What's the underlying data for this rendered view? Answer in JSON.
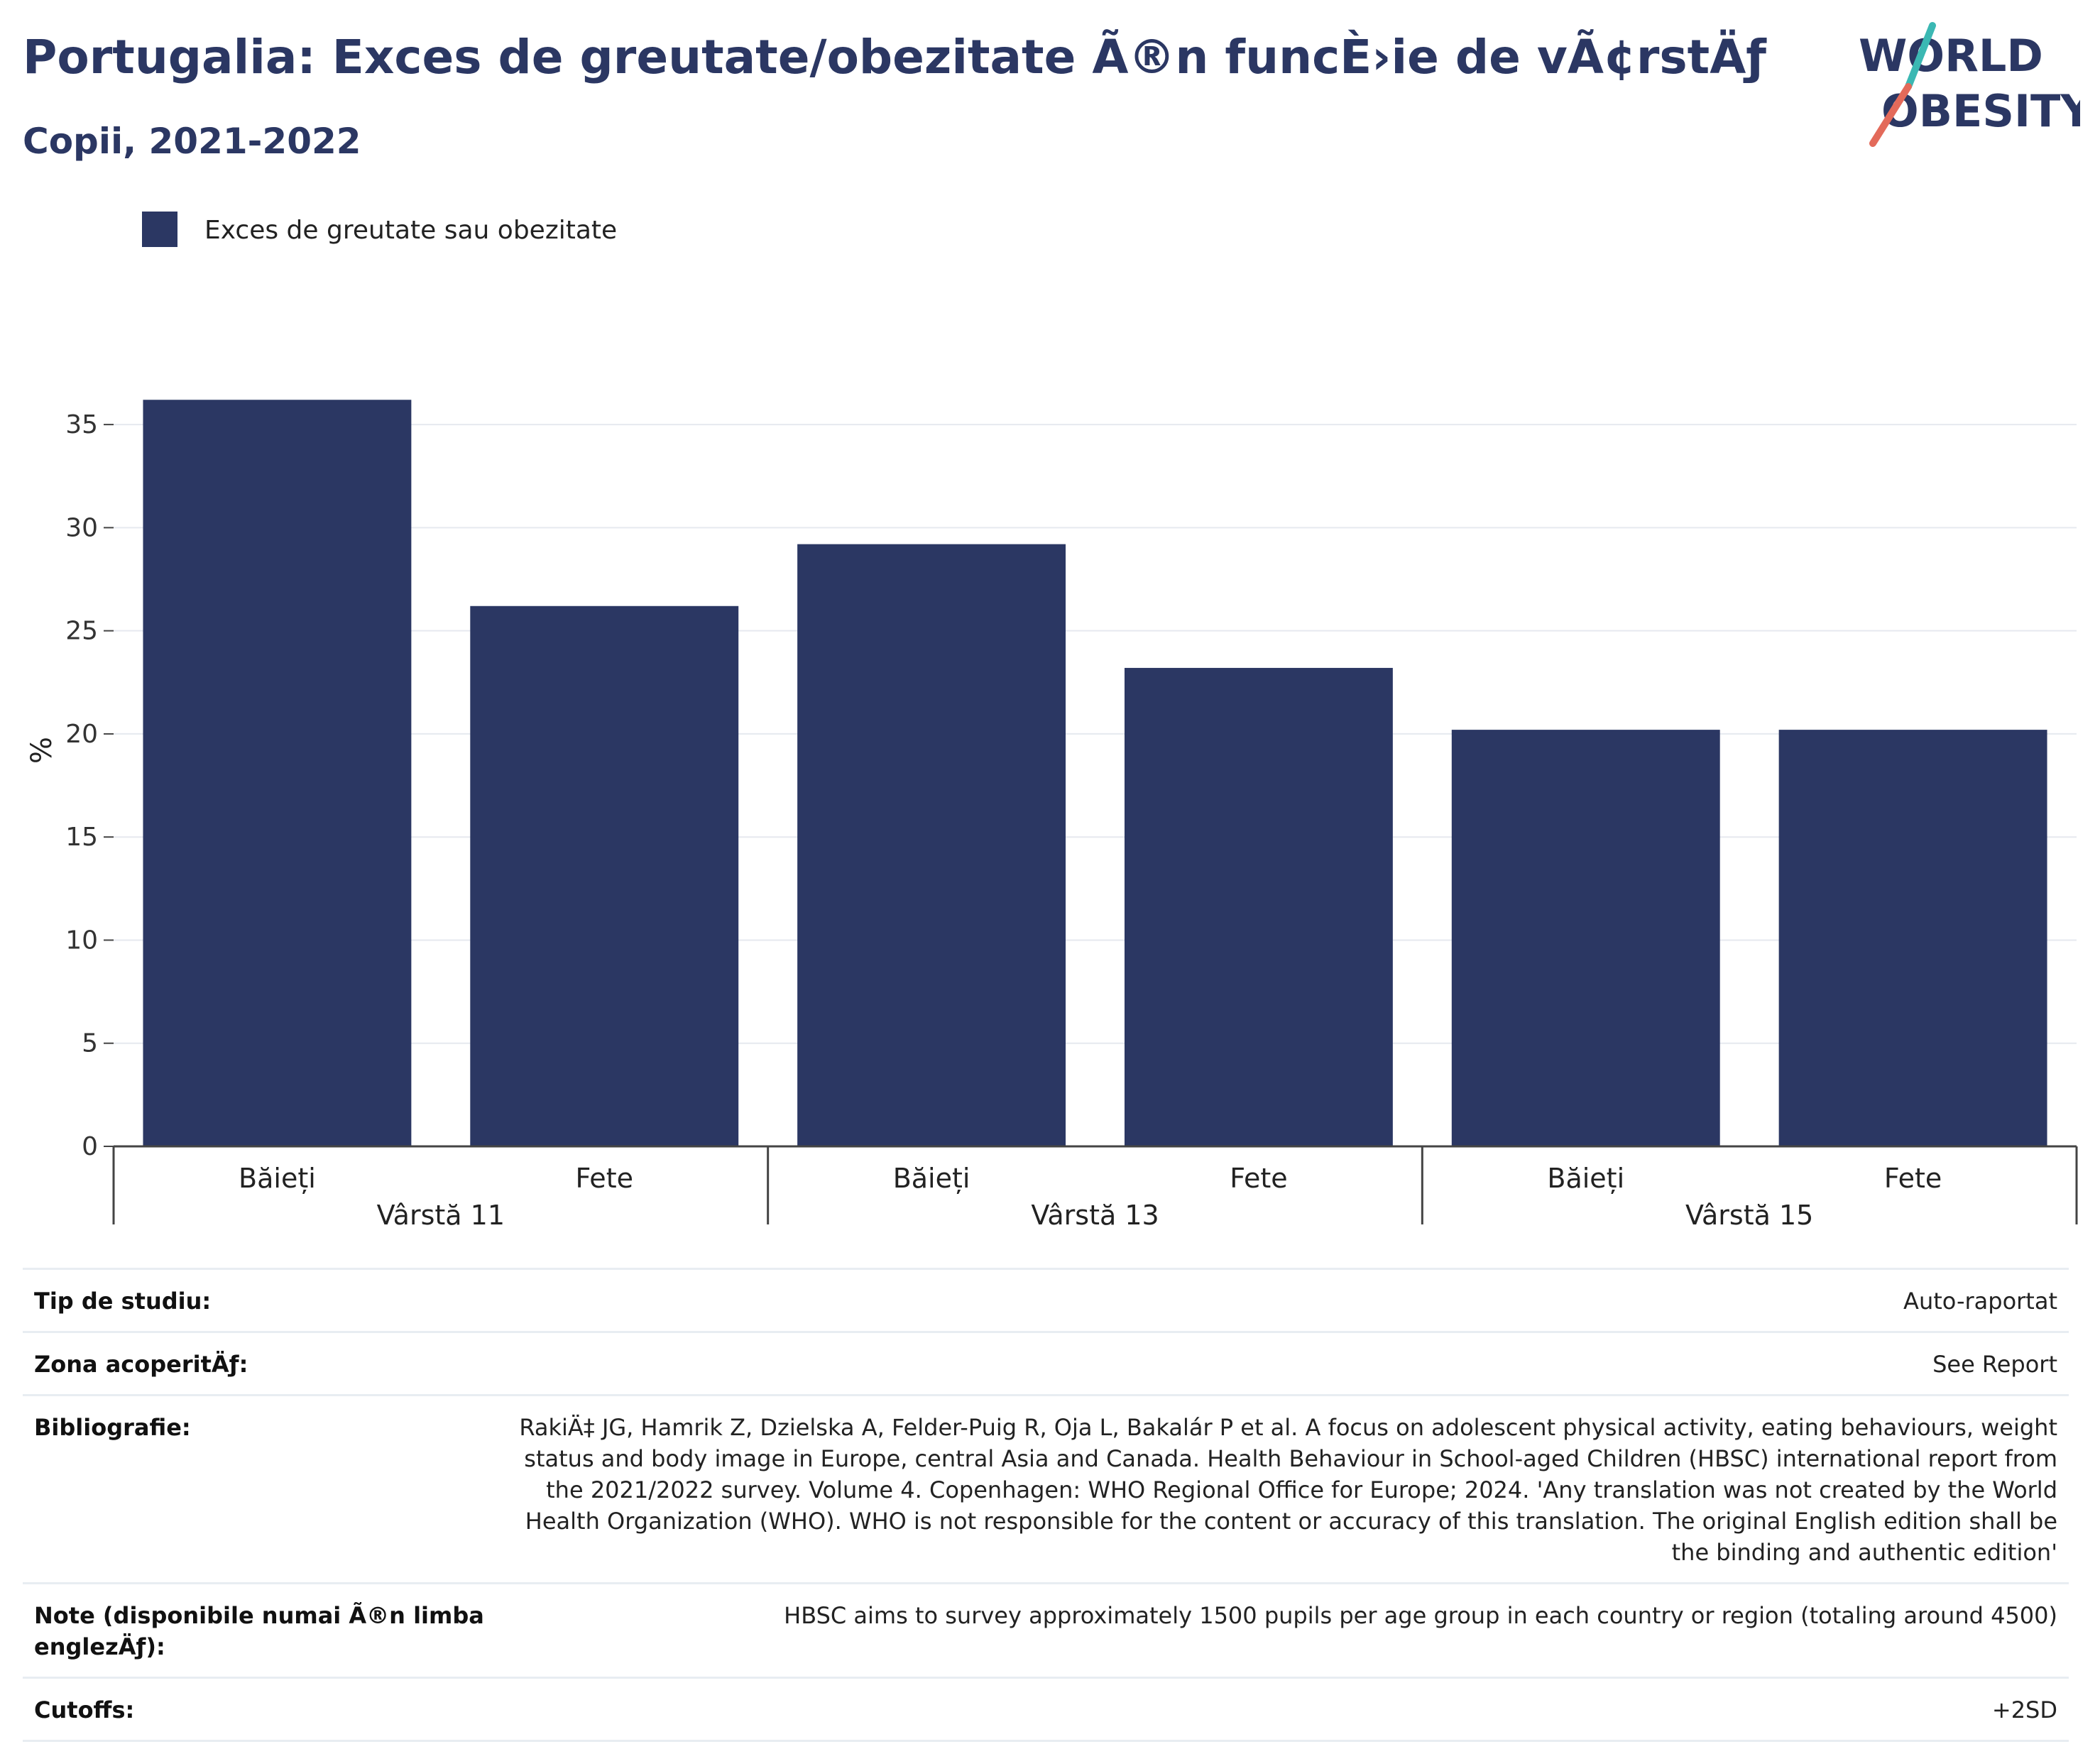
{
  "header": {
    "title": "Portugalia: Exces de greutate/obezitate Ã®n funcÈ›ie de vÃ¢rstÄƒ",
    "subtitle": "Copii, 2021-2022"
  },
  "logo": {
    "line1": "WORLD",
    "line2": "OBESITY",
    "text_color": "#2b3763",
    "accent_teal": "#3bb8b3",
    "accent_coral": "#e36a5a"
  },
  "chart_data": {
    "type": "bar",
    "ylabel": "%",
    "ylim": [
      0,
      37
    ],
    "yticks": [
      0,
      5,
      10,
      15,
      20,
      25,
      30,
      35
    ],
    "grid": true,
    "legend_position": "top-left",
    "series": [
      {
        "name": "Exces de greutate sau obezitate",
        "color": "#2b3763",
        "values": [
          36.2,
          26.2,
          29.2,
          23.2,
          20.2,
          20.2
        ]
      }
    ],
    "categories": [
      "Băieți",
      "Fete",
      "Băieți",
      "Fete",
      "Băieți",
      "Fete"
    ],
    "groups": [
      {
        "label": "Vârstă 11",
        "start": 0,
        "end": 1
      },
      {
        "label": "Vârstă 13",
        "start": 2,
        "end": 3
      },
      {
        "label": "Vârstă 15",
        "start": 4,
        "end": 5
      }
    ]
  },
  "meta": [
    {
      "label": "Tip de studiu:",
      "value": "Auto-raportat"
    },
    {
      "label": "Zona acoperitÄƒ:",
      "value": "See Report"
    },
    {
      "label": "Bibliografie:",
      "value": "RakiÄ‡ JG, Hamrik Z, Dzielska A, Felder-Puig R, Oja L, Bakalár P et al. A focus on adolescent physical activity, eating behaviours, weight status and body image in Europe, central Asia and Canada. Health Behaviour in School-aged Children (HBSC) international report from the 2021/2022 survey. Volume 4. Copenhagen: WHO Regional Office for Europe; 2024. 'Any translation was not created by the World Health Organization (WHO). WHO is not responsible for the content or accuracy of this translation. The original English edition shall be the binding and authentic edition'"
    },
    {
      "label": "Note (disponibile numai Ã®n limba englezÄƒ):",
      "value": "HBSC aims to survey approximately 1500 pupils per age group in each country or region (totaling around 4500)"
    },
    {
      "label": "Cutoffs:",
      "value": "+2SD"
    }
  ]
}
